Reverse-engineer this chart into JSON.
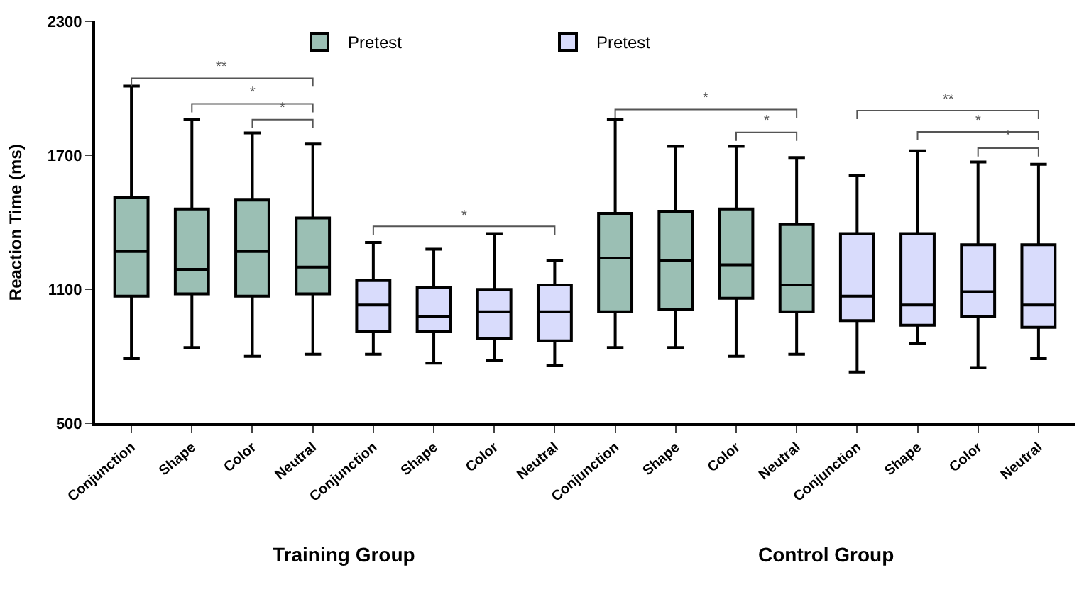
{
  "chart_data": {
    "type": "box",
    "ylabel": "Reaction Time (ms)",
    "categories": [
      "Conjunction",
      "Shape",
      "Color",
      "Neutral",
      "Conjunction",
      "Shape",
      "Color",
      "Neutral",
      "Conjunction",
      "Shape",
      "Color",
      "Neutral",
      "Conjunction",
      "Shape",
      "Color",
      "Neutral"
    ],
    "series": [
      {
        "name": "Pretest",
        "color": "#9bbfb4",
        "boxes": [
          {
            "low": 790,
            "q1": 1070,
            "median": 1270,
            "q3": 1510,
            "high": 2010
          },
          {
            "low": 840,
            "q1": 1080,
            "median": 1190,
            "q3": 1460,
            "high": 1860
          },
          {
            "low": 800,
            "q1": 1070,
            "median": 1270,
            "q3": 1500,
            "high": 1800
          },
          {
            "low": 810,
            "q1": 1080,
            "median": 1200,
            "q3": 1420,
            "high": 1750
          },
          null,
          null,
          null,
          null,
          {
            "low": 840,
            "q1": 1000,
            "median": 1240,
            "q3": 1440,
            "high": 1860
          },
          {
            "low": 840,
            "q1": 1010,
            "median": 1230,
            "q3": 1450,
            "high": 1740
          },
          {
            "low": 800,
            "q1": 1060,
            "median": 1210,
            "q3": 1460,
            "high": 1740
          },
          {
            "low": 810,
            "q1": 1000,
            "median": 1120,
            "q3": 1390,
            "high": 1690
          },
          null,
          null,
          null,
          null
        ]
      },
      {
        "name": "Pretest",
        "color": "#d9dcfc",
        "boxes": [
          null,
          null,
          null,
          null,
          {
            "low": 810,
            "q1": 910,
            "median": 1030,
            "q3": 1140,
            "high": 1310
          },
          {
            "low": 770,
            "q1": 910,
            "median": 980,
            "q3": 1110,
            "high": 1280
          },
          {
            "low": 780,
            "q1": 880,
            "median": 1000,
            "q3": 1100,
            "high": 1350
          },
          {
            "low": 760,
            "q1": 870,
            "median": 1000,
            "q3": 1120,
            "high": 1230
          },
          null,
          null,
          null,
          null,
          {
            "low": 730,
            "q1": 960,
            "median": 1070,
            "q3": 1350,
            "high": 1610
          },
          {
            "low": 860,
            "q1": 940,
            "median": 1030,
            "q3": 1350,
            "high": 1720
          },
          {
            "low": 750,
            "q1": 980,
            "median": 1090,
            "q3": 1300,
            "high": 1670
          },
          {
            "low": 790,
            "q1": 930,
            "median": 1030,
            "q3": 1300,
            "high": 1660
          }
        ]
      }
    ],
    "ylim": [
      500,
      2300
    ],
    "yticks": [
      500,
      1100,
      1700,
      2300
    ],
    "grid": false,
    "legend": "top",
    "annotations": [
      "**",
      "*",
      "*",
      "*",
      "*",
      "*",
      "**",
      "*",
      "*",
      "Training Group",
      "Control Group"
    ]
  }
}
